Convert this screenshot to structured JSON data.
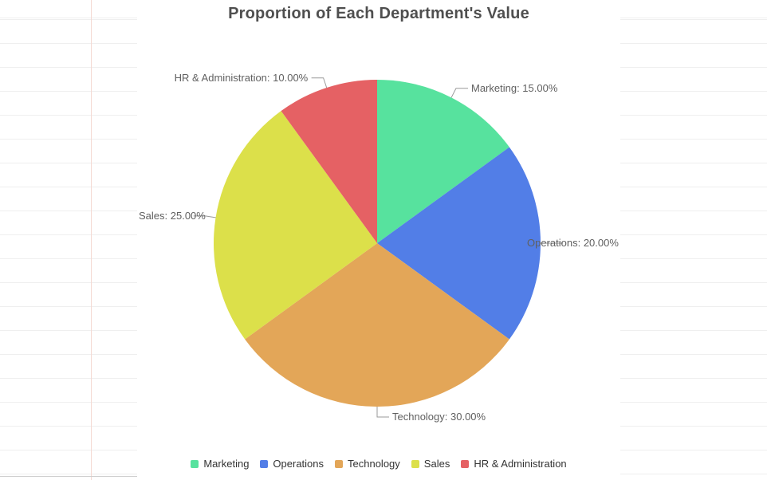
{
  "chart_data": {
    "type": "pie",
    "title": "Proportion of Each Department's Value",
    "series": [
      {
        "name": "Marketing",
        "value": 15,
        "percent": "15.00%",
        "label": "Marketing: 15.00%",
        "color": "#57E29E"
      },
      {
        "name": "Operations",
        "value": 20,
        "percent": "20.00%",
        "label": "Operations: 20.00%",
        "color": "#527EE7"
      },
      {
        "name": "Technology",
        "value": 30,
        "percent": "30.00%",
        "label": "Technology: 30.00%",
        "color": "#E3A658"
      },
      {
        "name": "Sales",
        "value": 25,
        "percent": "25.00%",
        "label": "Sales: 25.00%",
        "color": "#DCE04A"
      },
      {
        "name": "HR & Administration",
        "value": 10,
        "percent": "10.00%",
        "label": "HR & Administration: 10.00%",
        "color": "#E56164"
      }
    ],
    "legend": {
      "position": "bottom",
      "items": [
        "Marketing",
        "Operations",
        "Technology",
        "Sales",
        "HR & Administration"
      ]
    },
    "label_format": "{name}: {percent}",
    "start_angle_deg_clockwise_from_top": 0,
    "colors": {
      "title_text": "#4f4f4f",
      "label_text": "#606060",
      "label_line": "#999999",
      "legend_text": "#333333",
      "background": "#ffffff",
      "ruled_line": "#efefef",
      "vertical_rule": "#f5d9d3"
    }
  }
}
